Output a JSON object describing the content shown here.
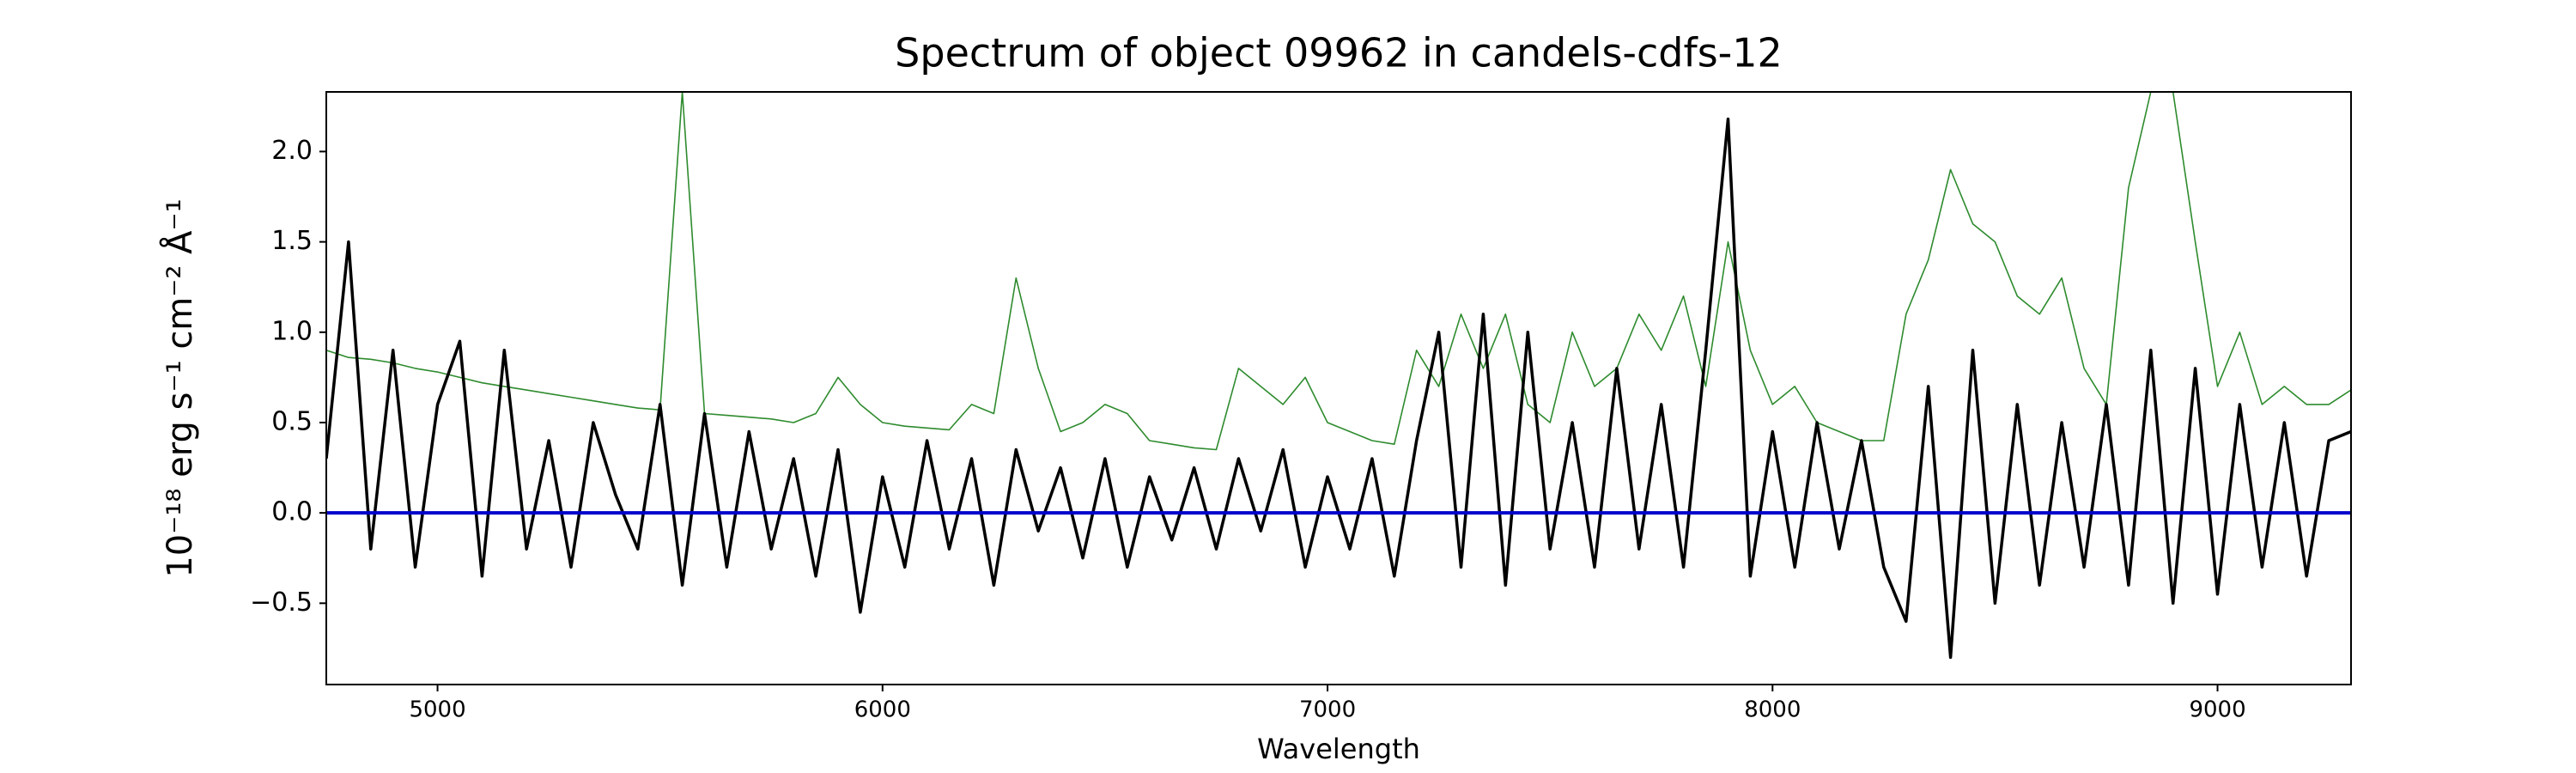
{
  "chart_data": {
    "type": "line",
    "title": "Spectrum of object 09962 in candels-cdfs-12",
    "x_label": "Wavelength",
    "y_label": "10⁻¹⁸ erg s⁻¹ cm⁻² Å⁻¹",
    "x": [
      4750,
      4800,
      4850,
      4900,
      4950,
      5000,
      5050,
      5100,
      5150,
      5200,
      5250,
      5300,
      5350,
      5400,
      5450,
      5500,
      5550,
      5600,
      5650,
      5700,
      5750,
      5800,
      5850,
      5900,
      5950,
      6000,
      6050,
      6100,
      6150,
      6200,
      6250,
      6300,
      6350,
      6400,
      6450,
      6500,
      6550,
      6600,
      6650,
      6700,
      6750,
      6800,
      6850,
      6900,
      6950,
      7000,
      7050,
      7100,
      7150,
      7200,
      7250,
      7300,
      7350,
      7400,
      7450,
      7500,
      7550,
      7600,
      7650,
      7700,
      7750,
      7800,
      7850,
      7900,
      7950,
      8000,
      8050,
      8100,
      8150,
      8200,
      8250,
      8300,
      8350,
      8400,
      8450,
      8500,
      8550,
      8600,
      8650,
      8700,
      8750,
      8800,
      8850,
      8900,
      8950,
      9000,
      9050,
      9100,
      9150,
      9200,
      9250,
      9300
    ],
    "series": [
      {
        "color": "#2e8b2e",
        "values": [
          0.9,
          0.86,
          0.85,
          0.83,
          0.8,
          0.78,
          0.75,
          0.72,
          0.7,
          0.68,
          0.66,
          0.64,
          0.62,
          0.6,
          0.58,
          0.57,
          2.33,
          0.55,
          0.54,
          0.53,
          0.52,
          0.5,
          0.55,
          0.75,
          0.6,
          0.5,
          0.48,
          0.47,
          0.46,
          0.6,
          0.55,
          1.3,
          0.8,
          0.45,
          0.5,
          0.6,
          0.55,
          0.4,
          0.38,
          0.36,
          0.35,
          0.8,
          0.7,
          0.6,
          0.75,
          0.5,
          0.45,
          0.4,
          0.38,
          0.9,
          0.7,
          1.1,
          0.8,
          1.1,
          0.6,
          0.5,
          1.0,
          0.7,
          0.8,
          1.1,
          0.9,
          1.2,
          0.7,
          1.5,
          0.9,
          0.6,
          0.7,
          0.5,
          0.45,
          0.4,
          0.4,
          1.1,
          1.4,
          1.9,
          1.6,
          1.5,
          1.2,
          1.1,
          1.3,
          0.8,
          0.6,
          1.8,
          2.33,
          2.33,
          1.5,
          0.7,
          1.0,
          0.6,
          0.7,
          0.6,
          0.6,
          0.68
        ]
      },
      {
        "color": "#000000",
        "values": [
          0.3,
          1.5,
          -0.2,
          0.9,
          -0.3,
          0.6,
          0.95,
          -0.35,
          0.9,
          -0.2,
          0.4,
          -0.3,
          0.5,
          0.1,
          -0.2,
          0.6,
          -0.4,
          0.55,
          -0.3,
          0.45,
          -0.2,
          0.3,
          -0.35,
          0.35,
          -0.55,
          0.2,
          -0.3,
          0.4,
          -0.2,
          0.3,
          -0.4,
          0.35,
          -0.1,
          0.25,
          -0.25,
          0.3,
          -0.3,
          0.2,
          -0.15,
          0.25,
          -0.2,
          0.3,
          -0.1,
          0.35,
          -0.3,
          0.2,
          -0.2,
          0.3,
          -0.35,
          0.4,
          1.0,
          -0.3,
          1.1,
          -0.4,
          1.0,
          -0.2,
          0.5,
          -0.3,
          0.8,
          -0.2,
          0.6,
          -0.3,
          0.9,
          2.18,
          -0.35,
          0.45,
          -0.3,
          0.5,
          -0.2,
          0.4,
          -0.3,
          -0.6,
          0.7,
          -0.8,
          0.9,
          -0.5,
          0.6,
          -0.4,
          0.5,
          -0.3,
          0.6,
          -0.4,
          0.9,
          -0.5,
          0.8,
          -0.45,
          0.6,
          -0.3,
          0.5,
          -0.35,
          0.4,
          0.45
        ]
      }
    ],
    "reference_line": {
      "value": 0,
      "color": "#0000cc"
    },
    "xlim": [
      4750,
      9300
    ],
    "ylim": [
      -0.95,
      2.33
    ],
    "xticks": [
      5000,
      6000,
      7000,
      8000,
      9000
    ],
    "yticks": [
      {
        "value": -0.5,
        "label": "−0.5"
      },
      {
        "value": 0,
        "label": "0.0"
      },
      {
        "value": 0.5,
        "label": "0.5"
      },
      {
        "value": 1,
        "label": "1.0"
      },
      {
        "value": 1.5,
        "label": "1.5"
      },
      {
        "value": 2,
        "label": "2.0"
      }
    ]
  }
}
